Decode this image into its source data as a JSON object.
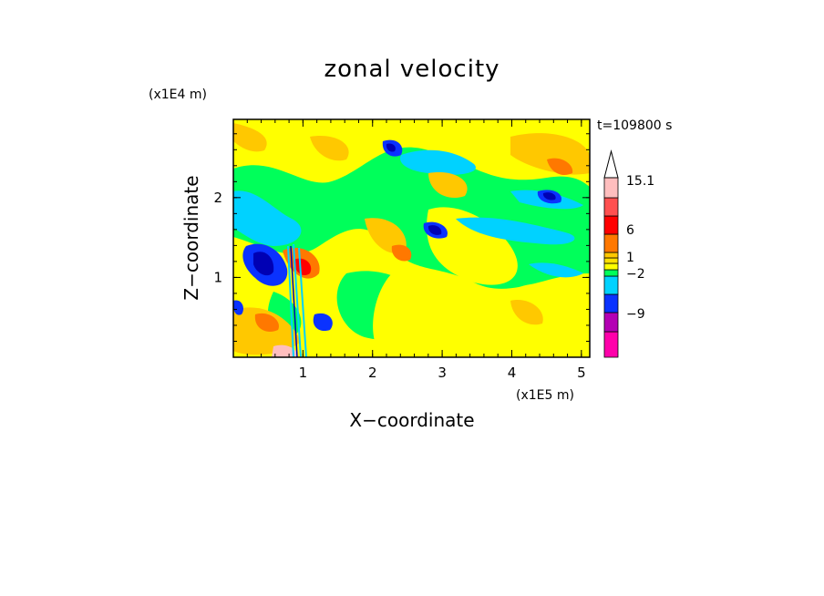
{
  "chart_data": {
    "type": "heatmap",
    "title": "zonal velocity",
    "xlabel": "X−coordinate",
    "ylabel": "Z−coordinate",
    "x_unit": "(x1E5 m)",
    "y_unit": "(x1E4 m)",
    "annotation": "t=109800 s",
    "xlim": [
      0,
      5.12
    ],
    "ylim": [
      0,
      2.98
    ],
    "x_ticks": [
      1,
      2,
      3,
      4,
      5
    ],
    "y_ticks": [
      1,
      2
    ],
    "colorbar": {
      "levels_labeled": [
        "15.1",
        "6",
        "1",
        "−2",
        "−9"
      ],
      "bins": [
        {
          "color": "#ff00aa"
        },
        {
          "color": "#b400b4"
        },
        {
          "color": "#6400b4"
        },
        {
          "color": "#0000b4"
        },
        {
          "color": "#0a32ff"
        },
        {
          "color": "#00d2ff"
        },
        {
          "color": "#00ff5a"
        },
        {
          "color": "#ffff00"
        },
        {
          "color": "#ffe000"
        },
        {
          "color": "#ffc800"
        },
        {
          "color": "#ff7800"
        },
        {
          "color": "#ff0000"
        },
        {
          "color": "#ff5050"
        },
        {
          "color": "#ffbebe"
        }
      ],
      "overflow_color": "#ffffff",
      "extend": "max"
    }
  }
}
